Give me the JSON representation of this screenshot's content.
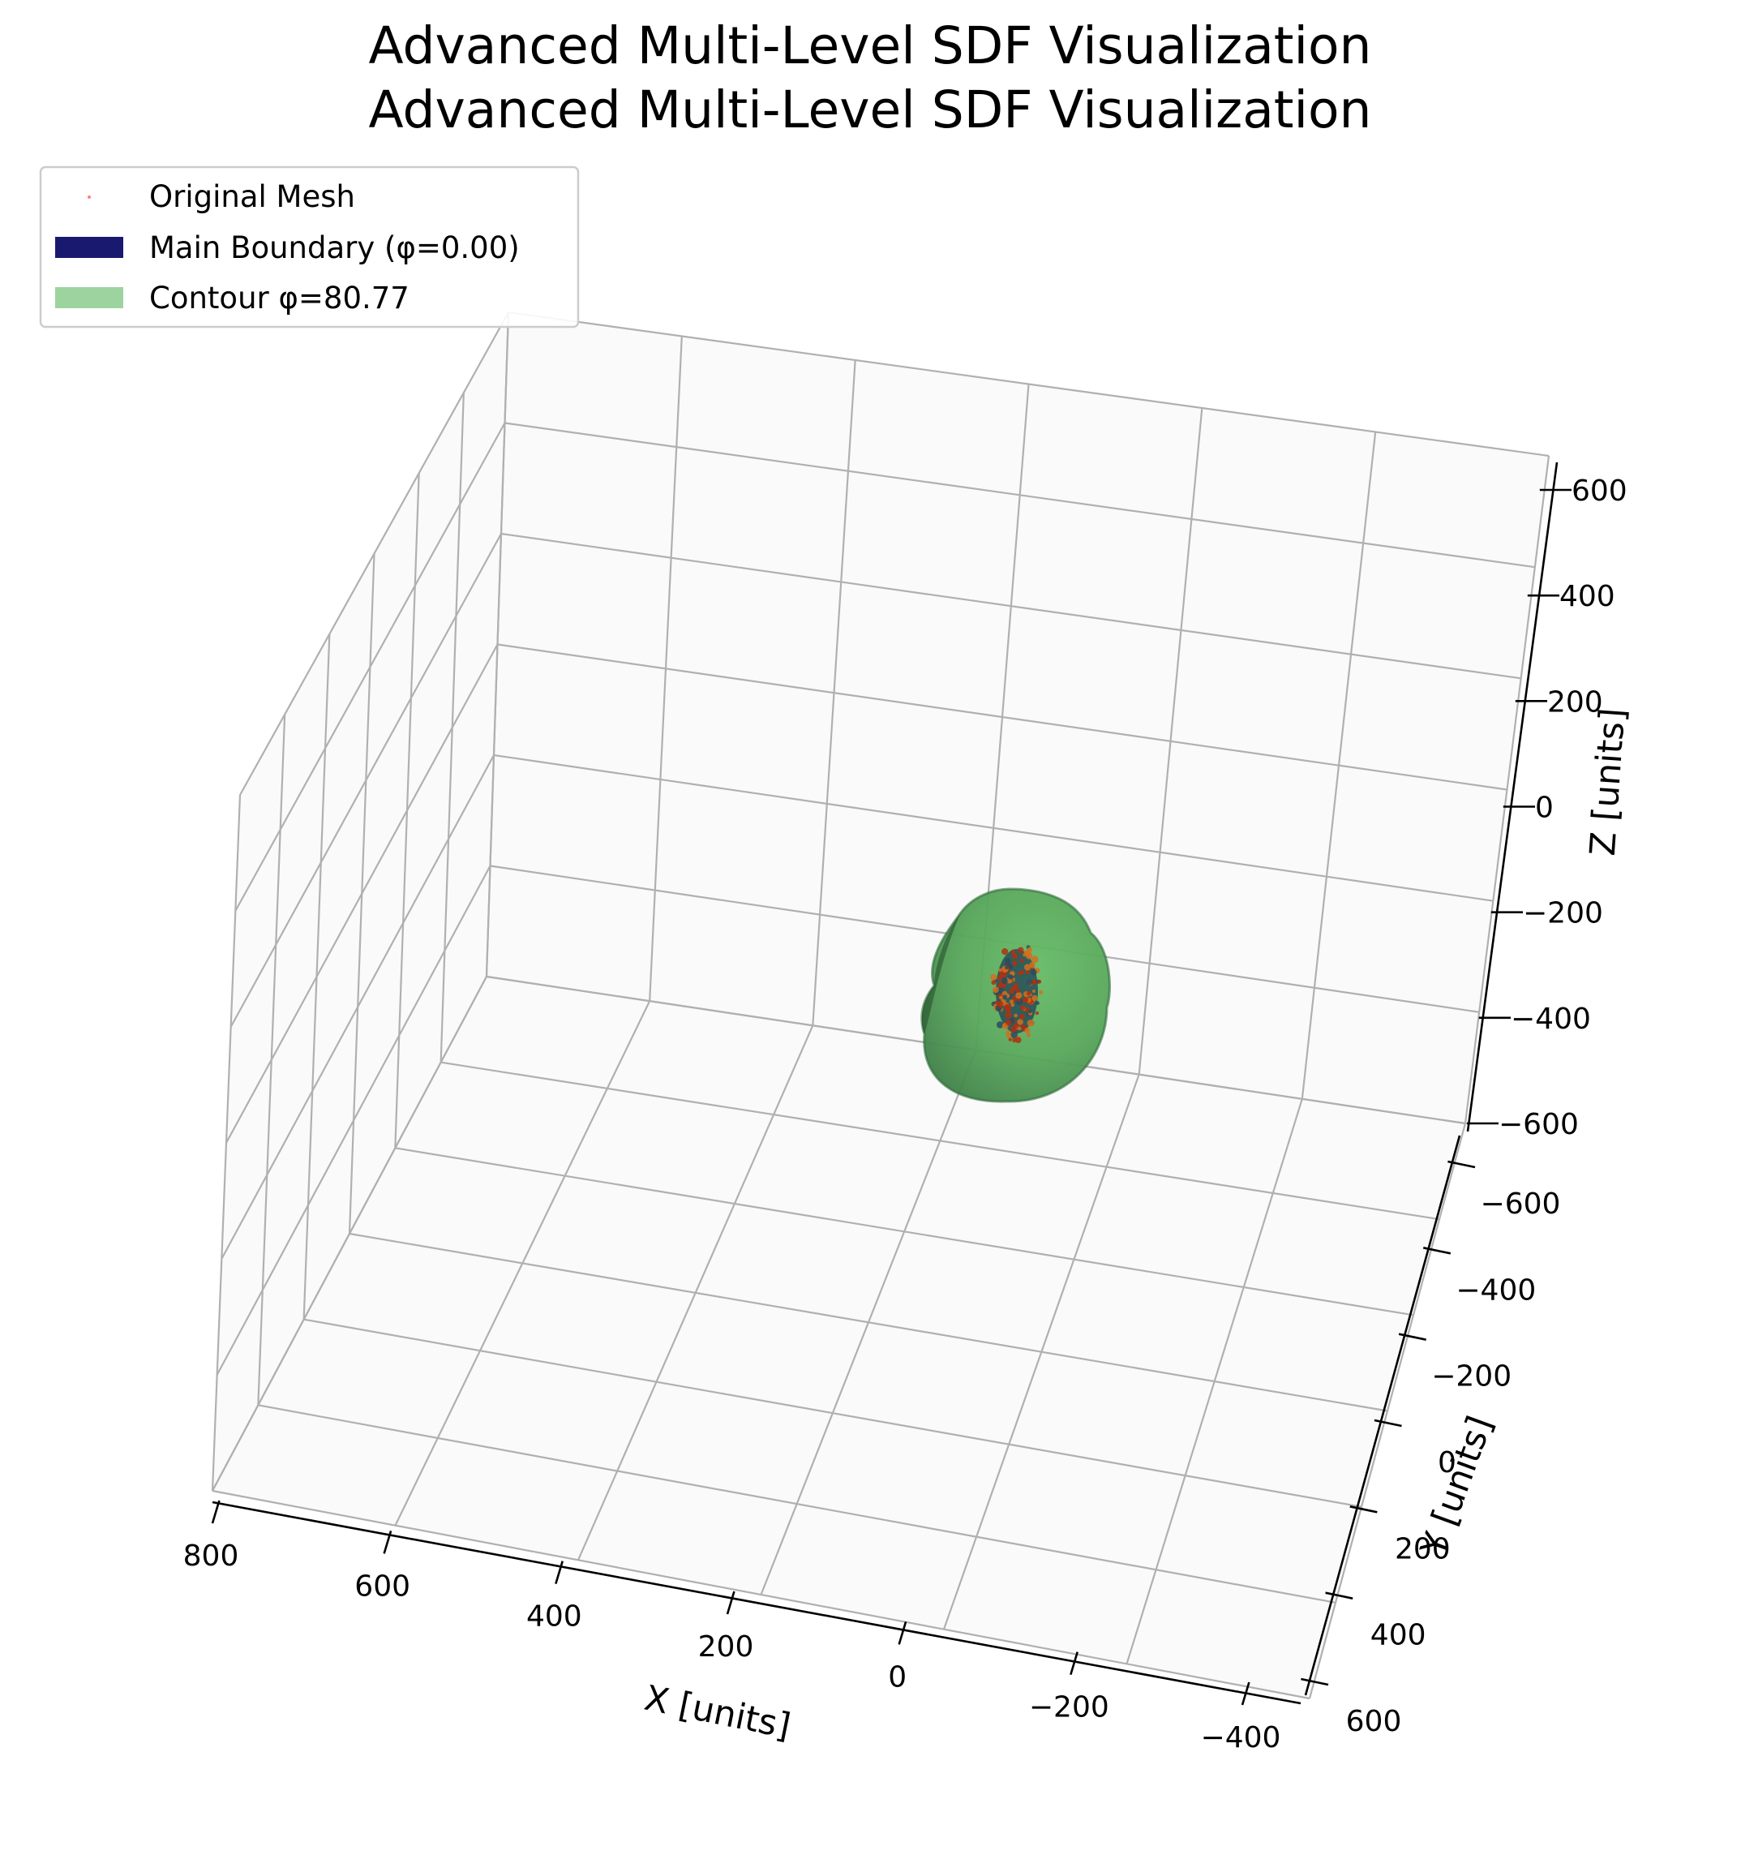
{
  "chart_data": {
    "type": "scatter3d",
    "title_lines": [
      "Advanced Multi-Level SDF Visualization",
      "Advanced Multi-Level SDF Visualization"
    ],
    "xlabel": "X [units]",
    "ylabel": "Y [units]",
    "zlabel": "Z [units]",
    "xlim": [
      -400,
      800
    ],
    "ylim": [
      -600,
      600
    ],
    "zlim": [
      -600,
      600
    ],
    "x_ticks": [
      800,
      600,
      400,
      200,
      0,
      -200,
      -400
    ],
    "y_ticks": [
      -600,
      -400,
      -200,
      0,
      200,
      400,
      600
    ],
    "z_ticks": [
      600,
      400,
      200,
      0,
      -200,
      -400,
      -600
    ],
    "x_tick_labels": [
      "800",
      "600",
      "400",
      "200",
      "0",
      "−200",
      "−400"
    ],
    "y_tick_labels": [
      "−600",
      "−400",
      "−200",
      "0",
      "200",
      "400",
      "600"
    ],
    "z_tick_labels": [
      "600",
      "400",
      "200",
      "0",
      "−200",
      "−400",
      "−600"
    ],
    "grid": true,
    "legend_position": "top-left",
    "series": [
      {
        "name": "Original Mesh",
        "kind": "points",
        "color": "#ff8080"
      },
      {
        "name": "Main Boundary (φ=0.00)",
        "kind": "surface",
        "color": "#191970"
      },
      {
        "name": "Contour φ=80.77",
        "kind": "surface",
        "color": "#4caf50"
      }
    ],
    "colors": {
      "contour_fill": "#4caf50",
      "contour_dark": "#2f6b3a",
      "boundary": "#191970",
      "mesh_points": "#b03010",
      "orange_points": "#d07020"
    }
  }
}
